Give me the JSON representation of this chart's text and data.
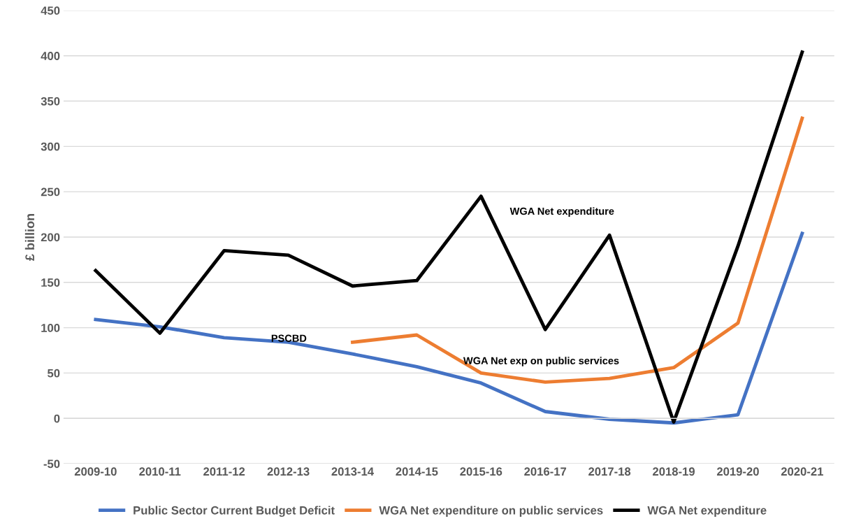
{
  "chart_data": {
    "type": "line",
    "ylabel": "£ billion",
    "categories": [
      "2009-10",
      "2010-11",
      "2011-12",
      "2012-13",
      "2013-14",
      "2014-15",
      "2015-16",
      "2016-17",
      "2017-18",
      "2018-19",
      "2019-20",
      "2020-21"
    ],
    "series": [
      {
        "name": "Public Sector Current Budget Deficit",
        "color": "#4472c4",
        "values": [
          109,
          101,
          89,
          84,
          71,
          57,
          39,
          7.5,
          -1,
          -5,
          4,
          204
        ]
      },
      {
        "name": "WGA Net expenditure on public services",
        "color": "#ed7d31",
        "values": [
          null,
          null,
          null,
          null,
          84,
          92,
          50,
          40,
          44,
          56,
          105,
          331
        ]
      },
      {
        "name": "WGA Net expenditure",
        "color": "#000000",
        "values": [
          163,
          94,
          185,
          180,
          146,
          152,
          245,
          98,
          202,
          -4,
          190,
          404
        ]
      }
    ],
    "annotations": [
      "WGA Net expenditure",
      "PSCBD",
      "WGA Net exp on public services"
    ],
    "ylim": [
      -50,
      450
    ],
    "yticks": [
      -50,
      0,
      50,
      100,
      150,
      200,
      250,
      300,
      350,
      400,
      450
    ],
    "grid": "y",
    "legend": "bottom",
    "marker": "none",
    "line_style": "solid"
  }
}
